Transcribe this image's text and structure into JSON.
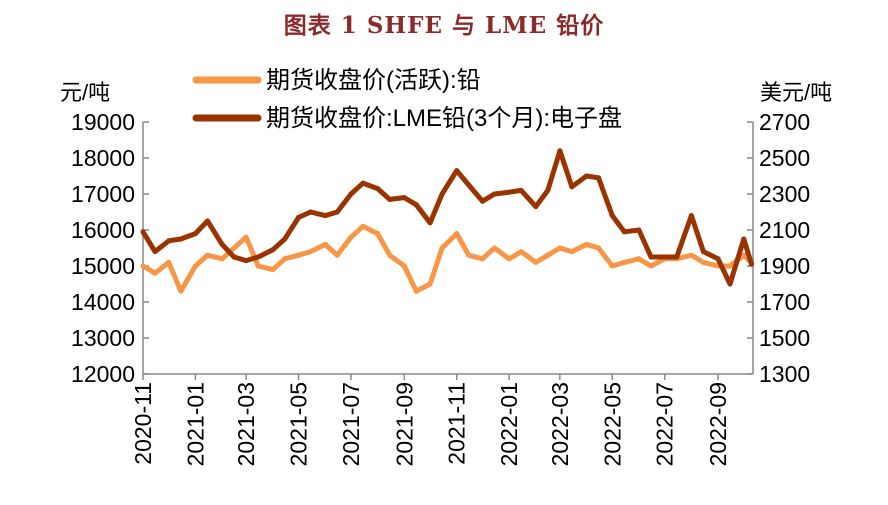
{
  "title": "图表 1 SHFE 与 LME 铅价",
  "chart_data": {
    "type": "line",
    "title": "图表 1 SHFE 与 LME 铅价",
    "left_axis": {
      "unit": "元/吨",
      "ylim": [
        12000,
        19000
      ],
      "ticks": [
        12000,
        13000,
        14000,
        15000,
        16000,
        17000,
        18000,
        19000
      ]
    },
    "right_axis": {
      "unit": "美元/吨",
      "ylim": [
        1300,
        2700
      ],
      "ticks": [
        1300,
        1500,
        1700,
        1900,
        2100,
        2300,
        2500,
        2700
      ]
    },
    "x_ticks": [
      "2020-11",
      "2021-01",
      "2021-03",
      "2021-05",
      "2021-07",
      "2021-09",
      "2021-11",
      "2022-01",
      "2022-03",
      "2022-05",
      "2022-07",
      "2022-09"
    ],
    "x_range": [
      "2020-11-01",
      "2022-10-10"
    ],
    "legend_placement": "top",
    "grid": false,
    "series": [
      {
        "name": "期货收盘价(活跃):铅",
        "axis": "left",
        "color": "#F79646",
        "x": [
          "2020-11-01",
          "2020-11-15",
          "2020-12-01",
          "2020-12-15",
          "2021-01-01",
          "2021-01-15",
          "2021-02-01",
          "2021-02-15",
          "2021-03-01",
          "2021-03-15",
          "2021-04-01",
          "2021-04-15",
          "2021-05-01",
          "2021-05-15",
          "2021-06-01",
          "2021-06-15",
          "2021-07-01",
          "2021-07-15",
          "2021-08-01",
          "2021-08-15",
          "2021-09-01",
          "2021-09-15",
          "2021-10-01",
          "2021-10-15",
          "2021-11-01",
          "2021-11-15",
          "2021-12-01",
          "2021-12-15",
          "2022-01-01",
          "2022-01-15",
          "2022-02-01",
          "2022-02-15",
          "2022-03-01",
          "2022-03-15",
          "2022-04-01",
          "2022-04-15",
          "2022-05-01",
          "2022-05-15",
          "2022-06-01",
          "2022-06-15",
          "2022-07-01",
          "2022-07-15",
          "2022-08-01",
          "2022-08-15",
          "2022-09-01",
          "2022-09-15",
          "2022-10-01",
          "2022-10-10"
        ],
        "values": [
          15000,
          14800,
          15100,
          14300,
          15000,
          15300,
          15200,
          15500,
          15800,
          15000,
          14900,
          15200,
          15300,
          15400,
          15600,
          15300,
          15800,
          16100,
          15900,
          15300,
          15000,
          14300,
          14500,
          15500,
          15900,
          15300,
          15200,
          15500,
          15200,
          15400,
          15100,
          15300,
          15500,
          15400,
          15600,
          15500,
          15000,
          15100,
          15200,
          15000,
          15200,
          15200,
          15300,
          15100,
          15000,
          15000,
          15300,
          15100
        ]
      },
      {
        "name": "期货收盘价:LME铅(3个月):电子盘",
        "axis": "right",
        "color": "#993300",
        "x": [
          "2020-11-01",
          "2020-11-15",
          "2020-12-01",
          "2020-12-15",
          "2021-01-01",
          "2021-01-15",
          "2021-02-01",
          "2021-02-15",
          "2021-03-01",
          "2021-03-15",
          "2021-04-01",
          "2021-04-15",
          "2021-05-01",
          "2021-05-15",
          "2021-06-01",
          "2021-06-15",
          "2021-07-01",
          "2021-07-15",
          "2021-08-01",
          "2021-08-15",
          "2021-09-01",
          "2021-09-15",
          "2021-10-01",
          "2021-10-15",
          "2021-11-01",
          "2021-11-15",
          "2021-12-01",
          "2021-12-15",
          "2022-01-01",
          "2022-01-15",
          "2022-02-01",
          "2022-02-15",
          "2022-03-01",
          "2022-03-15",
          "2022-04-01",
          "2022-04-15",
          "2022-05-01",
          "2022-05-15",
          "2022-06-01",
          "2022-06-15",
          "2022-07-01",
          "2022-07-15",
          "2022-08-01",
          "2022-08-15",
          "2022-09-01",
          "2022-09-15",
          "2022-10-01",
          "2022-10-10"
        ],
        "values": [
          2090,
          1980,
          2040,
          2050,
          2080,
          2150,
          2020,
          1950,
          1930,
          1950,
          1990,
          2050,
          2170,
          2200,
          2180,
          2200,
          2300,
          2360,
          2330,
          2270,
          2280,
          2240,
          2140,
          2300,
          2430,
          2350,
          2260,
          2300,
          2310,
          2320,
          2230,
          2320,
          2540,
          2340,
          2400,
          2390,
          2180,
          2090,
          2100,
          1950,
          1950,
          1950,
          2180,
          1980,
          1940,
          1800,
          2050,
          1910
        ]
      }
    ]
  }
}
